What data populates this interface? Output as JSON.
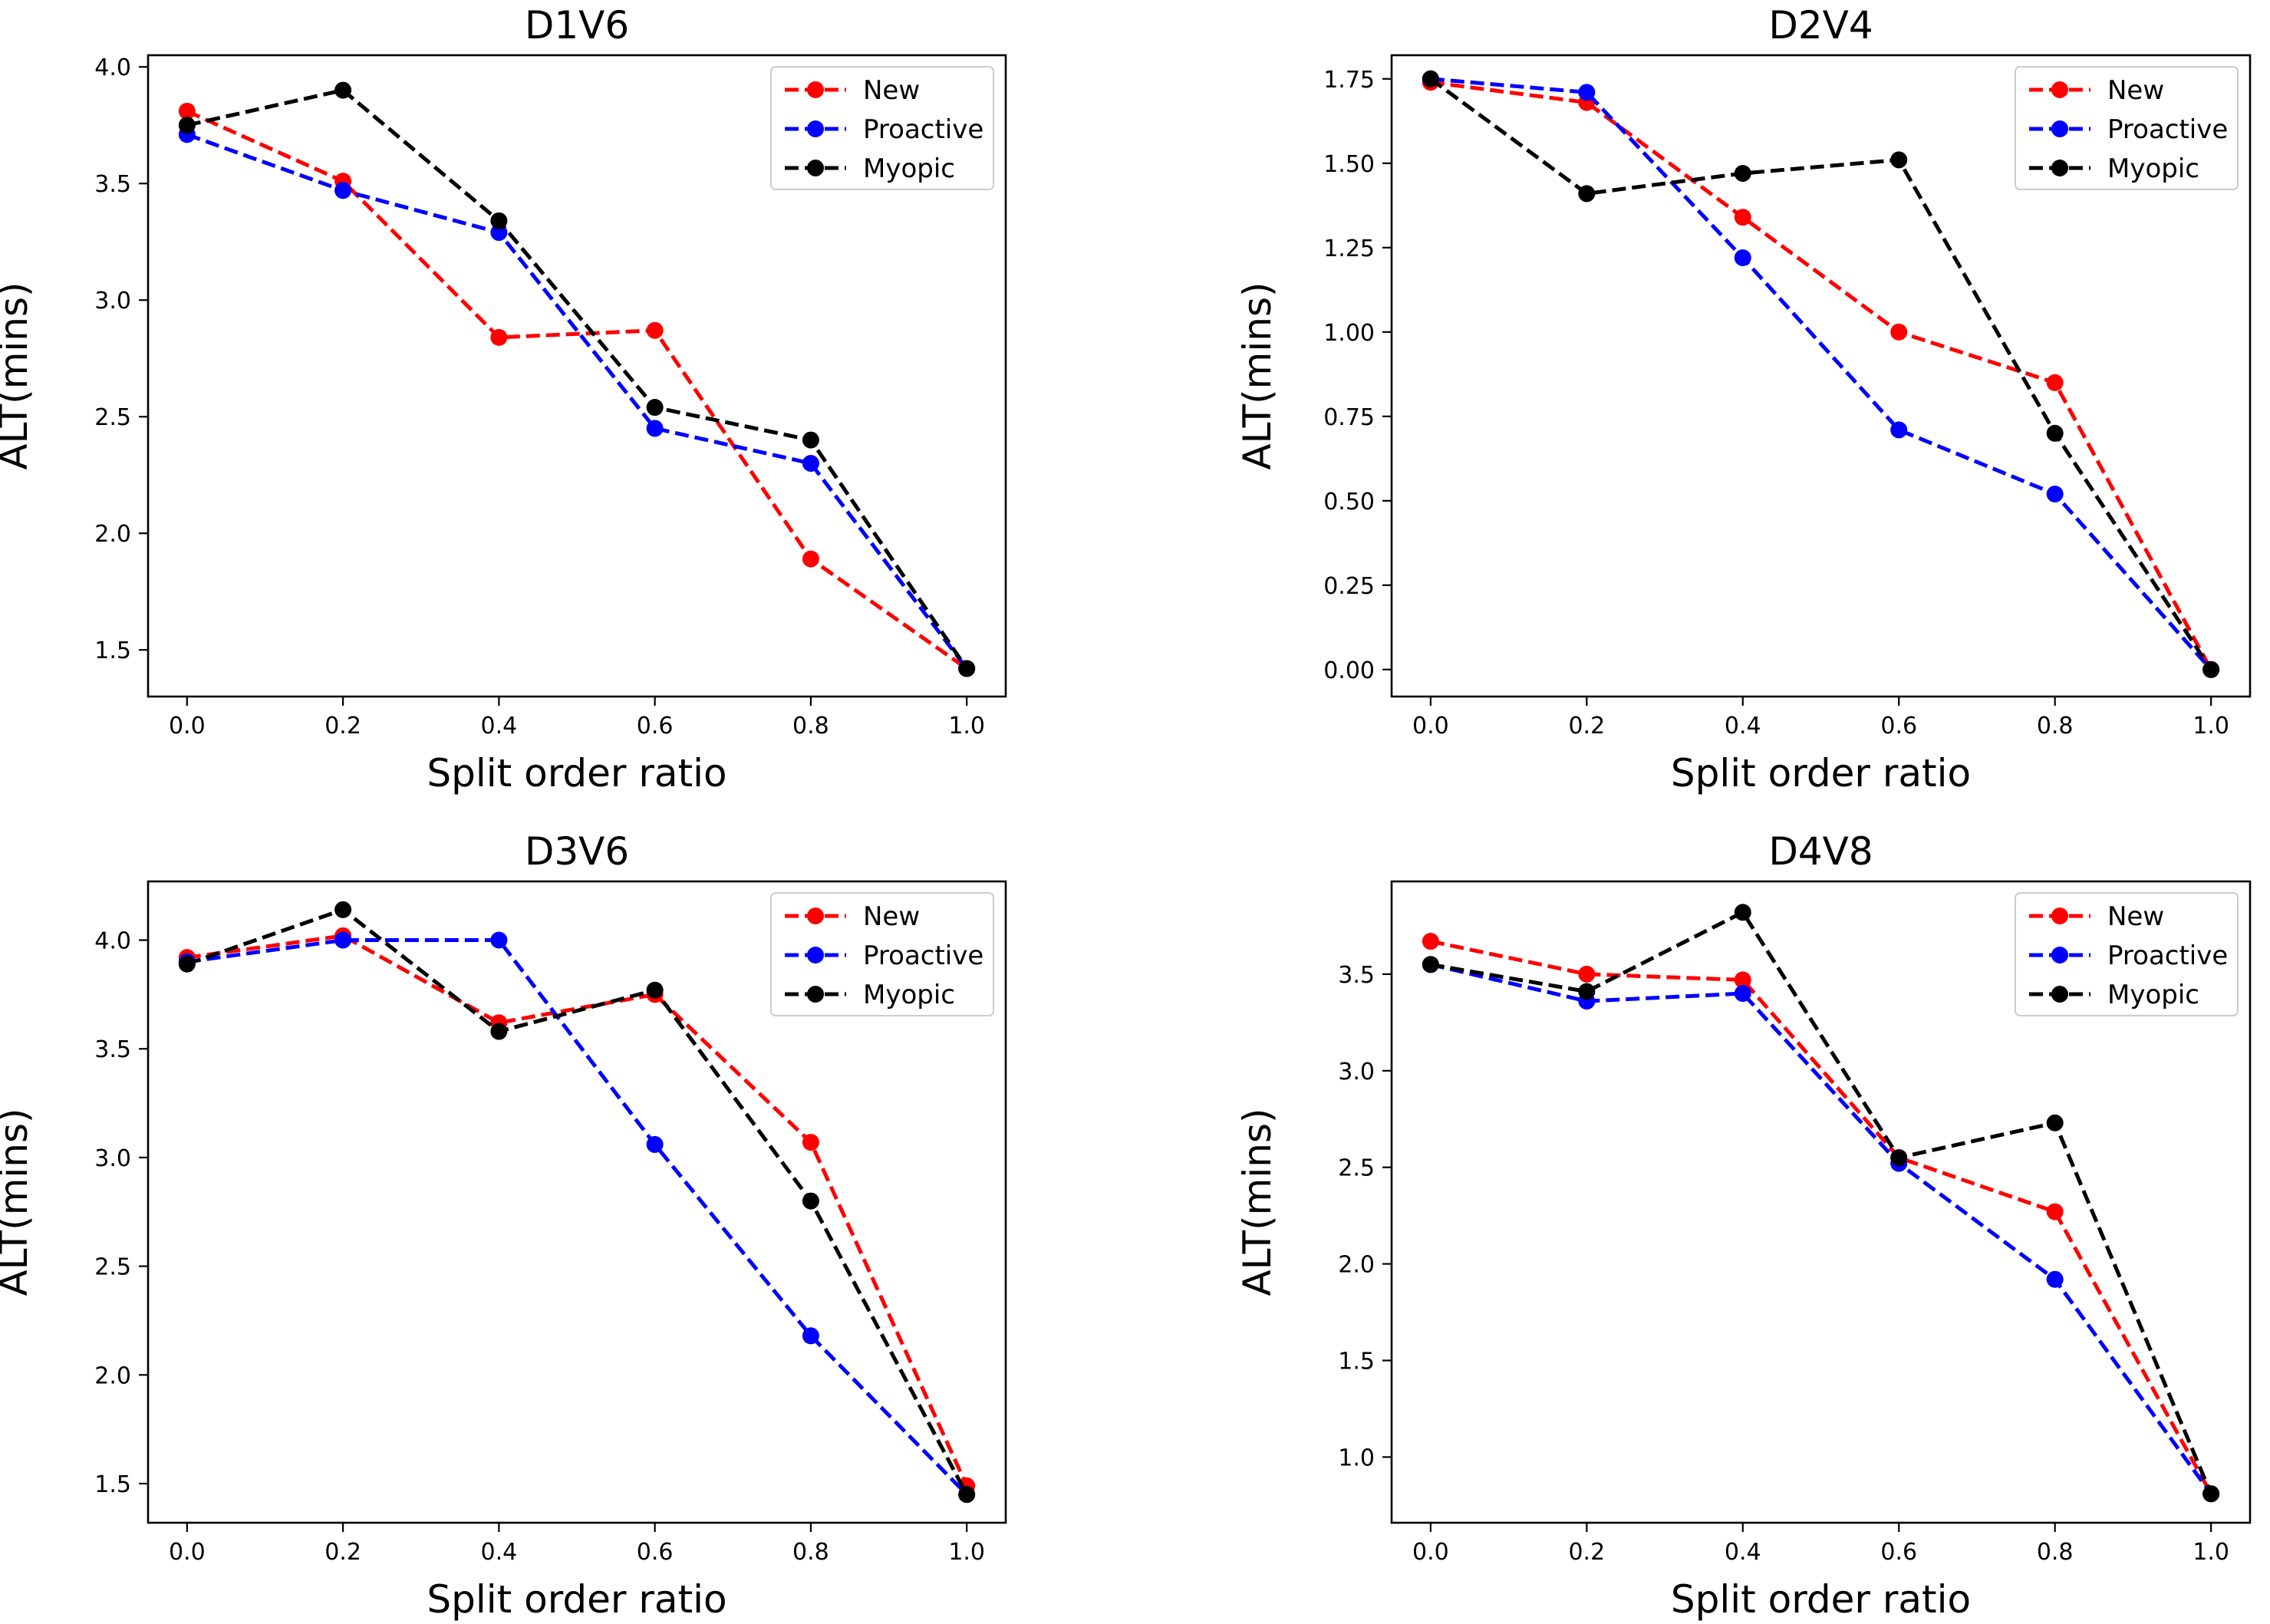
{
  "chart_data": [
    {
      "type": "line",
      "title": "D1V6",
      "xlabel": "Split order ratio",
      "ylabel": "ALT(mins)",
      "x": [
        0.0,
        0.2,
        0.4,
        0.6,
        0.8,
        1.0
      ],
      "xlim": [
        -0.05,
        1.05
      ],
      "ylim": [
        1.3,
        4.05
      ],
      "xticks": [
        "0.0",
        "0.2",
        "0.4",
        "0.6",
        "0.8",
        "1.0"
      ],
      "yticks": [
        "1.5",
        "2.0",
        "2.5",
        "3.0",
        "3.5",
        "4.0"
      ],
      "legend_position": "top-right",
      "series": [
        {
          "name": "New",
          "color": "#ff0000",
          "values": [
            3.81,
            3.51,
            2.84,
            2.87,
            1.89,
            1.42
          ]
        },
        {
          "name": "Proactive",
          "color": "#0000ff",
          "values": [
            3.71,
            3.47,
            3.29,
            2.45,
            2.3,
            1.42
          ]
        },
        {
          "name": "Myopic",
          "color": "#000000",
          "values": [
            3.75,
            3.9,
            3.34,
            2.54,
            2.4,
            1.42
          ]
        }
      ]
    },
    {
      "type": "line",
      "title": "D2V4",
      "xlabel": "Split order ratio",
      "ylabel": "ALT(mins)",
      "x": [
        0.0,
        0.2,
        0.4,
        0.6,
        0.8,
        1.0
      ],
      "xlim": [
        -0.05,
        1.05
      ],
      "ylim": [
        -0.08,
        1.82
      ],
      "xticks": [
        "0.0",
        "0.2",
        "0.4",
        "0.6",
        "0.8",
        "1.0"
      ],
      "yticks": [
        "0.00",
        "0.25",
        "0.50",
        "0.75",
        "1.00",
        "1.25",
        "1.50",
        "1.75"
      ],
      "legend_position": "top-right",
      "series": [
        {
          "name": "New",
          "color": "#ff0000",
          "values": [
            1.74,
            1.68,
            1.34,
            1.0,
            0.85,
            0.0
          ]
        },
        {
          "name": "Proactive",
          "color": "#0000ff",
          "values": [
            1.75,
            1.71,
            1.22,
            0.71,
            0.52,
            0.0
          ]
        },
        {
          "name": "Myopic",
          "color": "#000000",
          "values": [
            1.75,
            1.41,
            1.47,
            1.51,
            0.7,
            0.0
          ]
        }
      ]
    },
    {
      "type": "line",
      "title": "D3V6",
      "xlabel": "Split order ratio",
      "ylabel": "ALT(mins)",
      "x": [
        0.0,
        0.2,
        0.4,
        0.6,
        0.8,
        1.0
      ],
      "xlim": [
        -0.05,
        1.05
      ],
      "ylim": [
        1.32,
        4.27
      ],
      "xticks": [
        "0.0",
        "0.2",
        "0.4",
        "0.6",
        "0.8",
        "1.0"
      ],
      "yticks": [
        "1.5",
        "2.0",
        "2.5",
        "3.0",
        "3.5",
        "4.0"
      ],
      "legend_position": "top-right",
      "series": [
        {
          "name": "New",
          "color": "#ff0000",
          "values": [
            3.92,
            4.02,
            3.62,
            3.75,
            3.07,
            1.49
          ]
        },
        {
          "name": "Proactive",
          "color": "#0000ff",
          "values": [
            3.9,
            4.0,
            4.0,
            3.06,
            2.18,
            1.45
          ]
        },
        {
          "name": "Myopic",
          "color": "#000000",
          "values": [
            3.89,
            4.14,
            3.58,
            3.77,
            2.8,
            1.45
          ]
        }
      ]
    },
    {
      "type": "line",
      "title": "D4V8",
      "xlabel": "Split order ratio",
      "ylabel": "ALT(mins)",
      "x": [
        0.0,
        0.2,
        0.4,
        0.6,
        0.8,
        1.0
      ],
      "xlim": [
        -0.05,
        1.05
      ],
      "ylim": [
        0.66,
        3.98
      ],
      "xticks": [
        "0.0",
        "0.2",
        "0.4",
        "0.6",
        "0.8",
        "1.0"
      ],
      "yticks": [
        "1.0",
        "1.5",
        "2.0",
        "2.5",
        "3.0",
        "3.5"
      ],
      "legend_position": "top-right",
      "series": [
        {
          "name": "New",
          "color": "#ff0000",
          "values": [
            3.67,
            3.5,
            3.47,
            2.55,
            2.27,
            0.81
          ]
        },
        {
          "name": "Proactive",
          "color": "#0000ff",
          "values": [
            3.55,
            3.36,
            3.4,
            2.52,
            1.92,
            0.81
          ]
        },
        {
          "name": "Myopic",
          "color": "#000000",
          "values": [
            3.55,
            3.41,
            3.82,
            2.55,
            2.73,
            0.81
          ]
        }
      ]
    }
  ]
}
